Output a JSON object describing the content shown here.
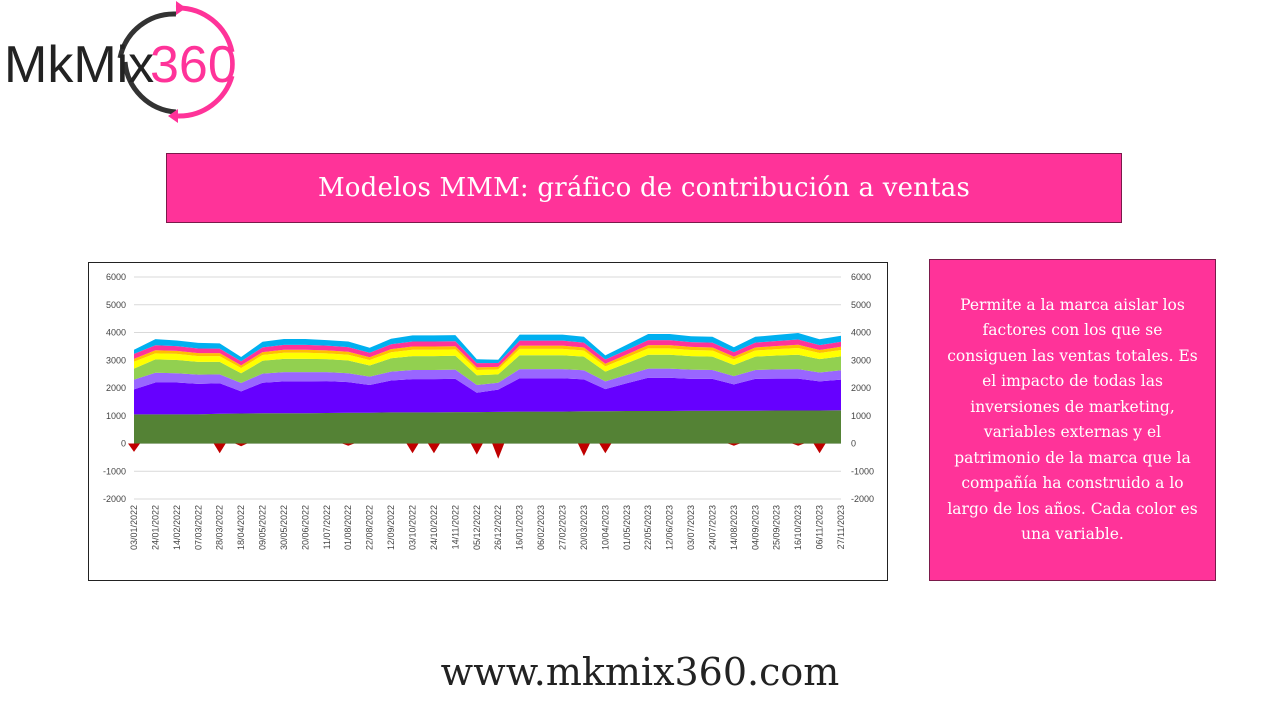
{
  "logo": {
    "text_main": "MkMix",
    "text_accent": "360"
  },
  "title": "Modelos MMM: gráfico de contribución a ventas",
  "side_text": "Permite a la marca aislar los factores con los que se consiguen las ventas totales. Es el impacto de todas las inversiones de marketing, variables externas y el patrimonio de la marca que la compañía ha construido a lo largo de los años. Cada color es una variable.",
  "footer": "www.mkmix360.com",
  "colors": {
    "accent": "#ff3399",
    "logo_dark": "#222222",
    "logo_ring": "#333333"
  },
  "chart_data": {
    "type": "area",
    "stacked": true,
    "ylim": [
      -2000,
      6000
    ],
    "yticks": [
      -2000,
      -1000,
      0,
      1000,
      2000,
      3000,
      4000,
      5000,
      6000
    ],
    "secondary_axis": true,
    "grid": true,
    "x_labels": [
      "03/01/2022",
      "24/01/2022",
      "14/02/2022",
      "07/03/2022",
      "28/03/2022",
      "18/04/2022",
      "09/05/2022",
      "30/05/2022",
      "20/06/2022",
      "11/07/2022",
      "01/08/2022",
      "22/08/2022",
      "12/09/2022",
      "03/10/2022",
      "24/10/2022",
      "14/11/2022",
      "05/12/2022",
      "26/12/2022",
      "16/01/2023",
      "06/02/2023",
      "27/02/2023",
      "20/03/2023",
      "10/04/2023",
      "01/05/2023",
      "22/05/2023",
      "12/06/2023",
      "03/07/2023",
      "24/07/2023",
      "14/08/2023",
      "04/09/2023",
      "25/09/2023",
      "16/10/2023",
      "06/11/2023",
      "27/11/2023"
    ],
    "series": [
      {
        "color": "#548235",
        "values": [
          1050,
          1050,
          1050,
          1050,
          1070,
          1080,
          1090,
          1090,
          1090,
          1100,
          1110,
          1110,
          1120,
          1120,
          1120,
          1130,
          1130,
          1140,
          1150,
          1150,
          1150,
          1160,
          1160,
          1170,
          1170,
          1170,
          1180,
          1180,
          1180,
          1180,
          1190,
          1190,
          1190,
          1200
        ]
      },
      {
        "color": "#6600ff",
        "values": [
          900,
          1150,
          1150,
          1100,
          1100,
          800,
          1100,
          1150,
          1150,
          1150,
          1100,
          1000,
          1150,
          1200,
          1200,
          1200,
          700,
          800,
          1200,
          1200,
          1200,
          1150,
          800,
          1000,
          1200,
          1200,
          1150,
          1150,
          950,
          1150,
          1150,
          1150,
          1050,
          1100
        ]
      },
      {
        "color": "#9966ff",
        "values": [
          350,
          350,
          330,
          330,
          320,
          300,
          330,
          330,
          330,
          320,
          320,
          300,
          320,
          330,
          330,
          330,
          280,
          250,
          330,
          330,
          330,
          330,
          280,
          300,
          330,
          330,
          330,
          320,
          300,
          320,
          330,
          340,
          320,
          340
        ]
      },
      {
        "color": "#92d050",
        "values": [
          400,
          480,
          480,
          460,
          450,
          350,
          460,
          480,
          480,
          470,
          460,
          400,
          480,
          500,
          500,
          500,
          350,
          300,
          500,
          500,
          500,
          490,
          350,
          420,
          500,
          500,
          490,
          480,
          400,
          480,
          500,
          520,
          480,
          500
        ]
      },
      {
        "color": "#ffff00",
        "values": [
          250,
          220,
          220,
          210,
          210,
          190,
          210,
          220,
          220,
          210,
          210,
          200,
          220,
          230,
          230,
          230,
          190,
          180,
          230,
          230,
          230,
          220,
          190,
          210,
          230,
          230,
          220,
          220,
          200,
          220,
          230,
          240,
          220,
          230
        ]
      },
      {
        "color": "#ffc000",
        "values": [
          100,
          110,
          110,
          105,
          105,
          95,
          105,
          110,
          110,
          105,
          105,
          100,
          110,
          115,
          115,
          115,
          95,
          90,
          115,
          115,
          115,
          110,
          95,
          105,
          115,
          115,
          110,
          110,
          100,
          110,
          115,
          120,
          110,
          115
        ]
      },
      {
        "color": "#ff3399",
        "values": [
          180,
          180,
          170,
          170,
          165,
          150,
          170,
          175,
          175,
          170,
          170,
          160,
          175,
          180,
          180,
          180,
          150,
          140,
          180,
          180,
          180,
          175,
          150,
          165,
          180,
          180,
          175,
          175,
          160,
          175,
          180,
          190,
          175,
          180
        ]
      },
      {
        "color": "#00b0f0",
        "values": [
          150,
          220,
          200,
          200,
          190,
          150,
          200,
          210,
          210,
          200,
          200,
          180,
          200,
          220,
          220,
          220,
          140,
          120,
          220,
          220,
          220,
          210,
          150,
          190,
          220,
          220,
          210,
          210,
          180,
          210,
          220,
          230,
          210,
          220
        ]
      }
    ],
    "negative_series": {
      "color": "#c00000",
      "values": [
        -300,
        0,
        0,
        0,
        -350,
        -100,
        0,
        0,
        0,
        0,
        -80,
        0,
        0,
        -350,
        -350,
        0,
        -400,
        -550,
        0,
        0,
        0,
        -450,
        -350,
        0,
        0,
        0,
        0,
        0,
        -80,
        0,
        0,
        -80,
        -350,
        0
      ]
    }
  }
}
